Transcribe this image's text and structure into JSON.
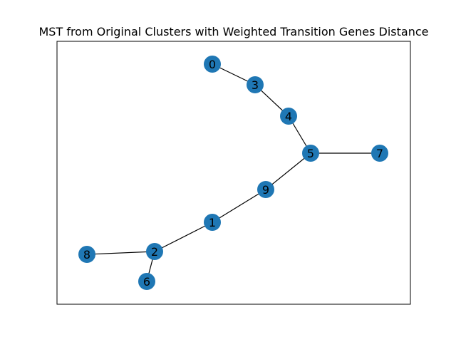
{
  "figure": {
    "title": "MST from Original Clusters with Weighted Transition Genes Distance"
  },
  "colors": {
    "node_fill": "#1f77b4",
    "edge": "#000000",
    "frame": "#000000",
    "background": "#ffffff"
  },
  "graph": {
    "nodes": [
      {
        "id": "0",
        "label": "0"
      },
      {
        "id": "1",
        "label": "1"
      },
      {
        "id": "2",
        "label": "2"
      },
      {
        "id": "3",
        "label": "3"
      },
      {
        "id": "4",
        "label": "4"
      },
      {
        "id": "5",
        "label": "5"
      },
      {
        "id": "6",
        "label": "6"
      },
      {
        "id": "7",
        "label": "7"
      },
      {
        "id": "8",
        "label": "8"
      },
      {
        "id": "9",
        "label": "9"
      }
    ],
    "edges": [
      {
        "source": "0",
        "target": "3"
      },
      {
        "source": "3",
        "target": "4"
      },
      {
        "source": "4",
        "target": "5"
      },
      {
        "source": "5",
        "target": "7"
      },
      {
        "source": "5",
        "target": "9"
      },
      {
        "source": "9",
        "target": "1"
      },
      {
        "source": "1",
        "target": "2"
      },
      {
        "source": "2",
        "target": "8"
      },
      {
        "source": "2",
        "target": "6"
      }
    ]
  }
}
